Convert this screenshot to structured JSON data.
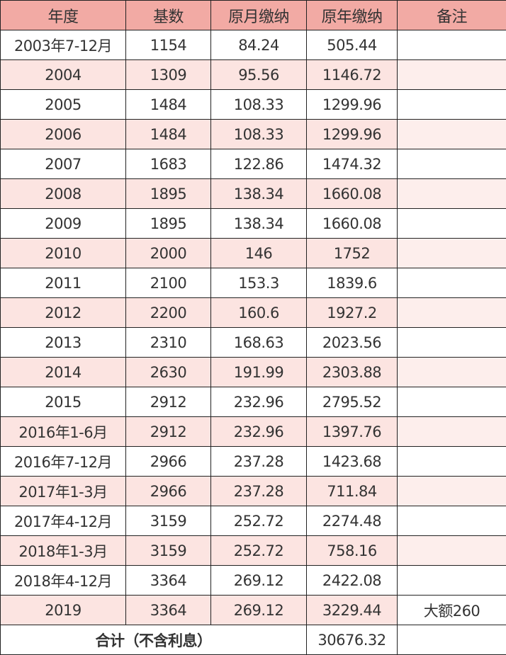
{
  "headers": [
    "年度",
    "基数",
    "原月缴纳",
    "原年缴纳",
    "备注"
  ],
  "rows": [
    {
      "year": "2003年7-12月",
      "base": "1154",
      "monthly": "84.24",
      "annual": "505.44",
      "note": ""
    },
    {
      "year": "2004",
      "base": "1309",
      "monthly": "95.56",
      "annual": "1146.72",
      "note": ""
    },
    {
      "year": "2005",
      "base": "1484",
      "monthly": "108.33",
      "annual": "1299.96",
      "note": ""
    },
    {
      "year": "2006",
      "base": "1484",
      "monthly": "108.33",
      "annual": "1299.96",
      "note": ""
    },
    {
      "year": "2007",
      "base": "1683",
      "monthly": "122.86",
      "annual": "1474.32",
      "note": ""
    },
    {
      "year": "2008",
      "base": "1895",
      "monthly": "138.34",
      "annual": "1660.08",
      "note": ""
    },
    {
      "year": "2009",
      "base": "1895",
      "monthly": "138.34",
      "annual": "1660.08",
      "note": ""
    },
    {
      "year": "2010",
      "base": "2000",
      "monthly": "146",
      "annual": "1752",
      "note": ""
    },
    {
      "year": "2011",
      "base": "2100",
      "monthly": "153.3",
      "annual": "1839.6",
      "note": ""
    },
    {
      "year": "2012",
      "base": "2200",
      "monthly": "160.6",
      "annual": "1927.2",
      "note": ""
    },
    {
      "year": "2013",
      "base": "2310",
      "monthly": "168.63",
      "annual": "2023.56",
      "note": ""
    },
    {
      "year": "2014",
      "base": "2630",
      "monthly": "191.99",
      "annual": "2303.88",
      "note": ""
    },
    {
      "year": "2015",
      "base": "2912",
      "monthly": "232.96",
      "annual": "2795.52",
      "note": ""
    },
    {
      "year": "2016年1-6月",
      "base": "2912",
      "monthly": "232.96",
      "annual": "1397.76",
      "note": ""
    },
    {
      "year": "2016年7-12月",
      "base": "2966",
      "monthly": "237.28",
      "annual": "1423.68",
      "note": ""
    },
    {
      "year": "2017年1-3月",
      "base": "2966",
      "monthly": "237.28",
      "annual": "711.84",
      "note": ""
    },
    {
      "year": "2017年4-12月",
      "base": "3159",
      "monthly": "252.72",
      "annual": "2274.48",
      "note": ""
    },
    {
      "year": "2018年1-3月",
      "base": "3159",
      "monthly": "252.72",
      "annual": "758.16",
      "note": ""
    },
    {
      "year": "2018年4-12月",
      "base": "3364",
      "monthly": "269.12",
      "annual": "2422.08",
      "note": ""
    },
    {
      "year": "2019",
      "base": "3364",
      "monthly": "269.12",
      "annual": "3229.44",
      "note": "大额260"
    }
  ],
  "total": {
    "label": "合计（不含利息）",
    "annual": "30676.32",
    "note": ""
  },
  "colors": {
    "header": "#f2aaa4",
    "alt_row": "#fce4e1",
    "border": "#222222"
  }
}
